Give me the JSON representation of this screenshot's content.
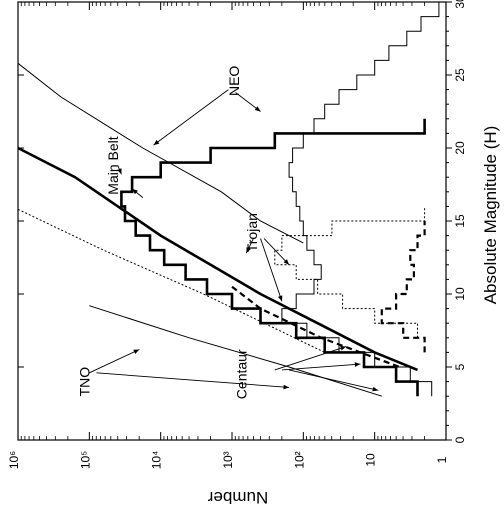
{
  "chart_data": {
    "type": "line",
    "orientation": "rotated-90-clockwise",
    "xlabel": "Absolute Magnitude (H)",
    "ylabel": "Number",
    "xlim": [
      0,
      30
    ],
    "ylim_log10": [
      0,
      6
    ],
    "scale_y": "log",
    "grid": false,
    "legend": "none",
    "x_ticks": [
      {
        "v": 0,
        "label": "0"
      },
      {
        "v": 5,
        "label": "5"
      },
      {
        "v": 10,
        "label": "10"
      },
      {
        "v": 15,
        "label": "15"
      },
      {
        "v": 20,
        "label": "20"
      },
      {
        "v": 25,
        "label": "25"
      },
      {
        "v": 30,
        "label": "30"
      }
    ],
    "y_ticks": [
      {
        "v": 6,
        "label": "10⁶"
      },
      {
        "v": 5,
        "label": "10⁵"
      },
      {
        "v": 4,
        "label": "10⁴"
      },
      {
        "v": 3,
        "label": "10³"
      },
      {
        "v": 2,
        "label": "10²"
      },
      {
        "v": 1,
        "label": "10"
      },
      {
        "v": 0,
        "label": "1"
      }
    ],
    "annotations": [
      {
        "text": "Main Belt",
        "x": 18.8,
        "ylog": 4.6
      },
      {
        "text": "NEO",
        "x": 24.6,
        "ylog": 2.9
      },
      {
        "text": "Trojan",
        "x": 14.2,
        "ylog": 2.65
      },
      {
        "text": "TNO",
        "x": 4.0,
        "ylog": 5.0
      },
      {
        "text": "Centaur",
        "x": 4.5,
        "ylog": 2.8
      }
    ],
    "series": [
      {
        "style": "thick-solid",
        "kind": "model",
        "points": [
          [
            20.0,
            6.0
          ],
          [
            18.0,
            5.2
          ],
          [
            16.0,
            4.6
          ],
          [
            14.0,
            4.0
          ],
          [
            12.0,
            3.3
          ],
          [
            10.0,
            2.6
          ],
          [
            8.0,
            1.8
          ],
          [
            6.0,
            1.0
          ],
          [
            4.8,
            0.4
          ]
        ]
      },
      {
        "style": "thin-solid",
        "kind": "model",
        "points": [
          [
            25.8,
            6.0
          ],
          [
            23.5,
            5.4
          ],
          [
            20.0,
            4.25
          ],
          [
            17.0,
            3.15
          ],
          [
            15.0,
            2.6
          ],
          [
            13.5,
            2.0
          ]
        ]
      },
      {
        "style": "dotted",
        "kind": "model",
        "points": [
          [
            15.8,
            6.0
          ],
          [
            13.0,
            4.8
          ],
          [
            10.0,
            3.4
          ],
          [
            8.0,
            2.55
          ],
          [
            6.0,
            1.7
          ]
        ]
      },
      {
        "style": "thin-solid",
        "kind": "model",
        "points": [
          [
            9.2,
            5.0
          ],
          [
            7.0,
            3.6
          ],
          [
            5.0,
            2.2
          ],
          [
            3.0,
            0.9
          ]
        ]
      },
      {
        "style": "thick-dashed",
        "kind": "model",
        "points": [
          [
            10.5,
            3.0
          ],
          [
            9.0,
            2.6
          ],
          [
            7.0,
            1.75
          ],
          [
            5.0,
            0.65
          ]
        ]
      },
      {
        "style": "thick-solid",
        "kind": "histogram",
        "steps": [
          [
            3.0,
            0.4
          ],
          [
            4.0,
            0.7
          ],
          [
            5.0,
            1.15
          ],
          [
            6.0,
            1.7
          ],
          [
            7.0,
            2.1
          ],
          [
            8.0,
            2.6
          ],
          [
            9.0,
            3.0
          ],
          [
            10.0,
            3.35
          ],
          [
            11.0,
            3.65
          ],
          [
            12.0,
            3.95
          ],
          [
            13.0,
            4.15
          ],
          [
            14.0,
            4.35
          ],
          [
            15.0,
            4.5
          ],
          [
            16.0,
            4.55
          ],
          [
            17.0,
            4.4
          ],
          [
            18.0,
            4.0
          ],
          [
            19.0,
            3.3
          ],
          [
            20.0,
            2.4
          ],
          [
            21.0,
            0.3
          ]
        ]
      },
      {
        "style": "thin-solid",
        "kind": "histogram",
        "steps": [
          [
            3.0,
            0.2
          ],
          [
            4.0,
            0.5
          ],
          [
            5.0,
            1.0
          ],
          [
            6.0,
            1.5
          ],
          [
            7.0,
            1.95
          ],
          [
            8.0,
            2.3
          ],
          [
            9.0,
            2.1
          ],
          [
            10.0,
            1.85
          ],
          [
            11.0,
            1.75
          ],
          [
            12.0,
            1.85
          ],
          [
            13.0,
            1.95
          ],
          [
            14.0,
            2.0
          ],
          [
            15.0,
            2.05
          ],
          [
            16.0,
            2.1
          ],
          [
            17.0,
            2.15
          ],
          [
            18.0,
            2.2
          ],
          [
            19.0,
            2.15
          ],
          [
            20.0,
            2.0
          ],
          [
            21.0,
            1.85
          ],
          [
            22.0,
            1.7
          ],
          [
            23.0,
            1.5
          ],
          [
            24.0,
            1.25
          ],
          [
            25.0,
            1.0
          ],
          [
            26.0,
            0.8
          ],
          [
            27.0,
            0.55
          ],
          [
            28.0,
            0.35
          ],
          [
            29.0,
            0.1
          ]
        ]
      },
      {
        "style": "dotted",
        "kind": "histogram",
        "steps": [
          [
            7.0,
            0.4
          ],
          [
            8.0,
            1.0
          ],
          [
            9.0,
            1.45
          ],
          [
            10.0,
            1.8
          ],
          [
            11.0,
            2.1
          ],
          [
            12.0,
            2.4
          ],
          [
            13.0,
            2.3
          ],
          [
            14.0,
            1.6
          ],
          [
            15.0,
            0.3
          ]
        ]
      },
      {
        "style": "thick-dashed",
        "kind": "histogram",
        "steps": [
          [
            6.0,
            0.3
          ],
          [
            7.0,
            0.6
          ],
          [
            8.0,
            0.9
          ],
          [
            9.0,
            0.7
          ],
          [
            10.0,
            0.55
          ],
          [
            11.0,
            0.45
          ],
          [
            12.0,
            0.5
          ],
          [
            13.0,
            0.4
          ],
          [
            14.0,
            0.3
          ]
        ]
      }
    ]
  }
}
